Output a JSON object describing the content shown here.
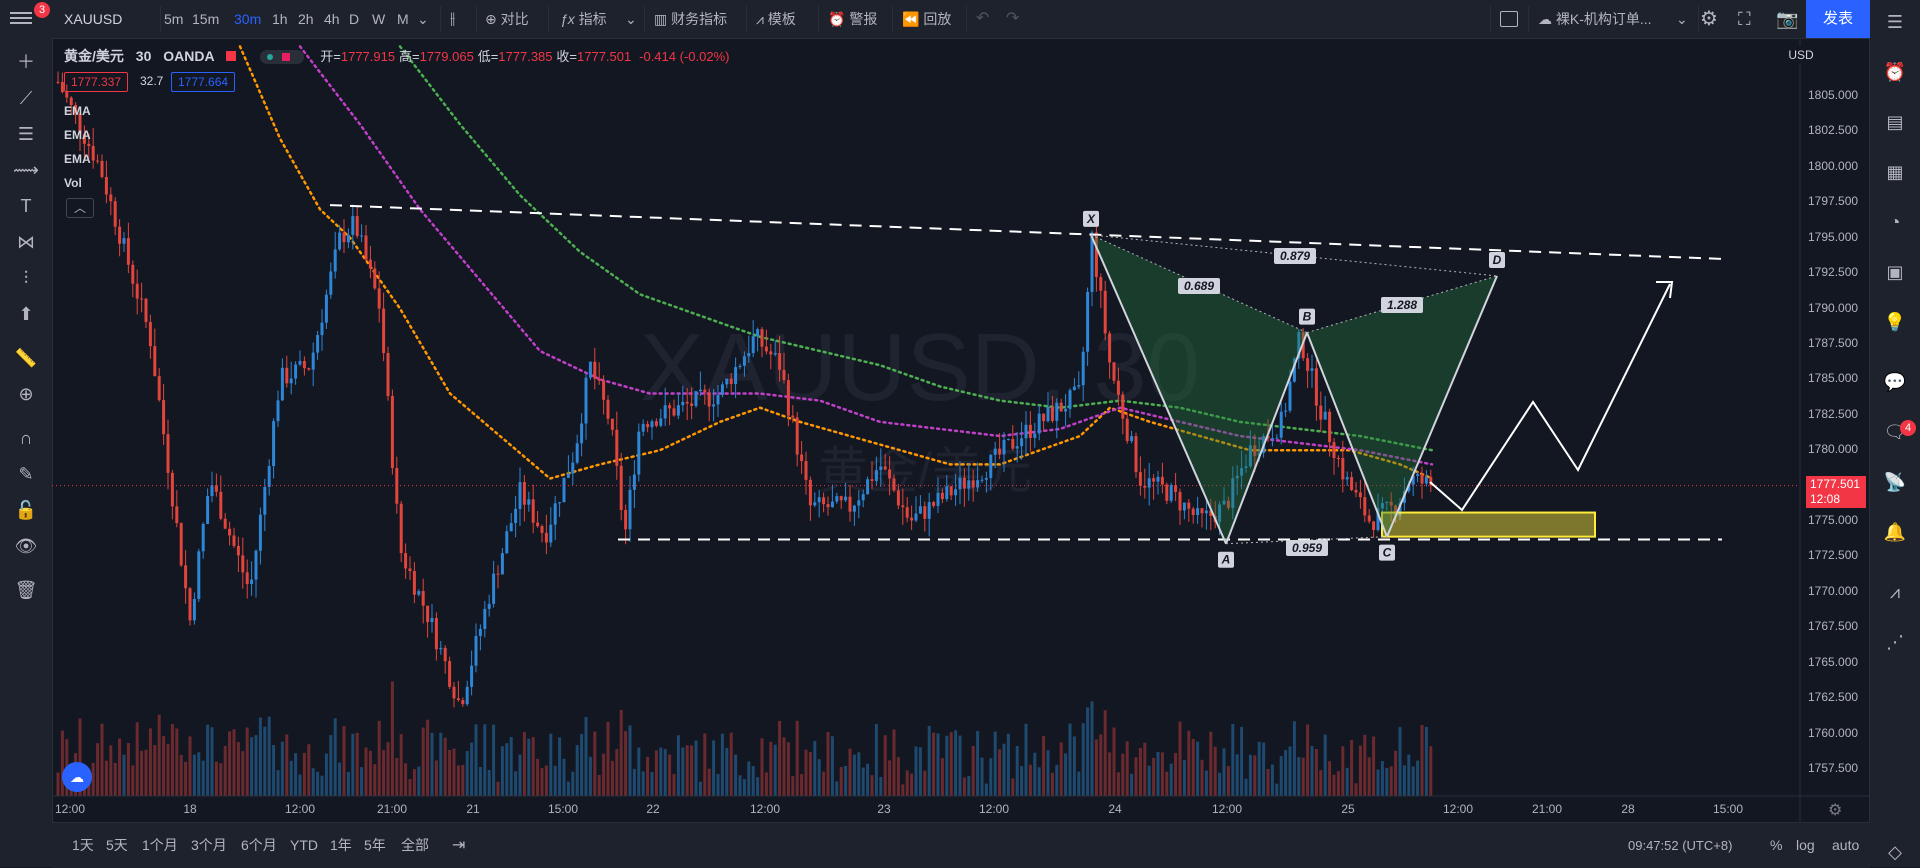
{
  "toolbar": {
    "menu_badge": "3",
    "symbol": "XAUUSD",
    "intervals": [
      {
        "label": "5m",
        "active": false
      },
      {
        "label": "15m",
        "active": false
      },
      {
        "label": "30m",
        "active": true
      },
      {
        "label": "1h",
        "active": false
      },
      {
        "label": "2h",
        "active": false
      },
      {
        "label": "4h",
        "active": false
      },
      {
        "label": "D",
        "active": false
      },
      {
        "label": "W",
        "active": false
      },
      {
        "label": "M",
        "active": false
      }
    ],
    "compare_label": "对比",
    "indicators_label": "指标",
    "financials_label": "财务指标",
    "templates_label": "模板",
    "alerts_label": "警报",
    "replay_label": "回放",
    "layout_name": "裸K-机构订单...",
    "publish_label": "发表"
  },
  "legend": {
    "symbol_name": "黄金/美元",
    "interval": "30",
    "exchange": "OANDA",
    "open_label": "开=",
    "open": "1777.915",
    "high_label": "高=",
    "high": "1779.065",
    "low_label": "低=",
    "low": "1777.385",
    "close_label": "收=",
    "close": "1777.501",
    "change": "-0.414 (-0.02%)",
    "bid": "1777.337",
    "spread": "32.7",
    "ask": "1777.664",
    "indicators": [
      "EMA",
      "EMA",
      "EMA",
      "Vol"
    ]
  },
  "price_axis": {
    "currency": "USD",
    "labels": [
      "1805.000",
      "1802.500",
      "1800.000",
      "1797.500",
      "1795.000",
      "1792.500",
      "1790.000",
      "1787.500",
      "1785.000",
      "1782.500",
      "1780.000",
      "1777.500",
      "1775.000",
      "1772.500",
      "1770.000",
      "1767.500",
      "1765.000",
      "1762.500",
      "1760.000",
      "1757.500"
    ],
    "last_price": "1777.501",
    "countdown": "12:08"
  },
  "time_axis": {
    "labels": [
      "12:00",
      "18",
      "12:00",
      "21:00",
      "21",
      "15:00",
      "22",
      "12:00",
      "23",
      "12:00",
      "24",
      "12:00",
      "25",
      "12:00",
      "21:00",
      "28",
      "15:00"
    ]
  },
  "pattern": {
    "points": [
      "X",
      "A",
      "B",
      "C",
      "D"
    ],
    "ratios": {
      "xb": "0.689",
      "xd": "0.879",
      "bd": "1.288",
      "ac": "0.959"
    }
  },
  "watermark": {
    "symbol": "XAUUSD, 30",
    "name": "黄金/美元"
  },
  "bottom": {
    "ranges": [
      "1天",
      "5天",
      "1个月",
      "3个月",
      "6个月",
      "YTD",
      "1年",
      "5年",
      "全部"
    ],
    "time": "09:47:52 (UTC+8)",
    "pct_label": "%",
    "log_label": "log",
    "auto_label": "auto"
  },
  "right_badge": "4",
  "chart_data": {
    "type": "candlestick",
    "symbol": "XAUUSD",
    "interval": "30",
    "ylim": [
      1755.5,
      1808.5
    ],
    "ohlc_last": {
      "open": 1777.915,
      "high": 1779.065,
      "low": 1777.385,
      "close": 1777.501
    },
    "pattern_prices": {
      "X": 1795.2,
      "A": 1773.4,
      "B": 1788.3,
      "C": 1773.9,
      "D": 1792.3
    },
    "support": 1773.7,
    "resistance_start": 1797.3,
    "resistance_end": 1793.5,
    "target_zone": [
      1773.9,
      1775.6
    ]
  }
}
